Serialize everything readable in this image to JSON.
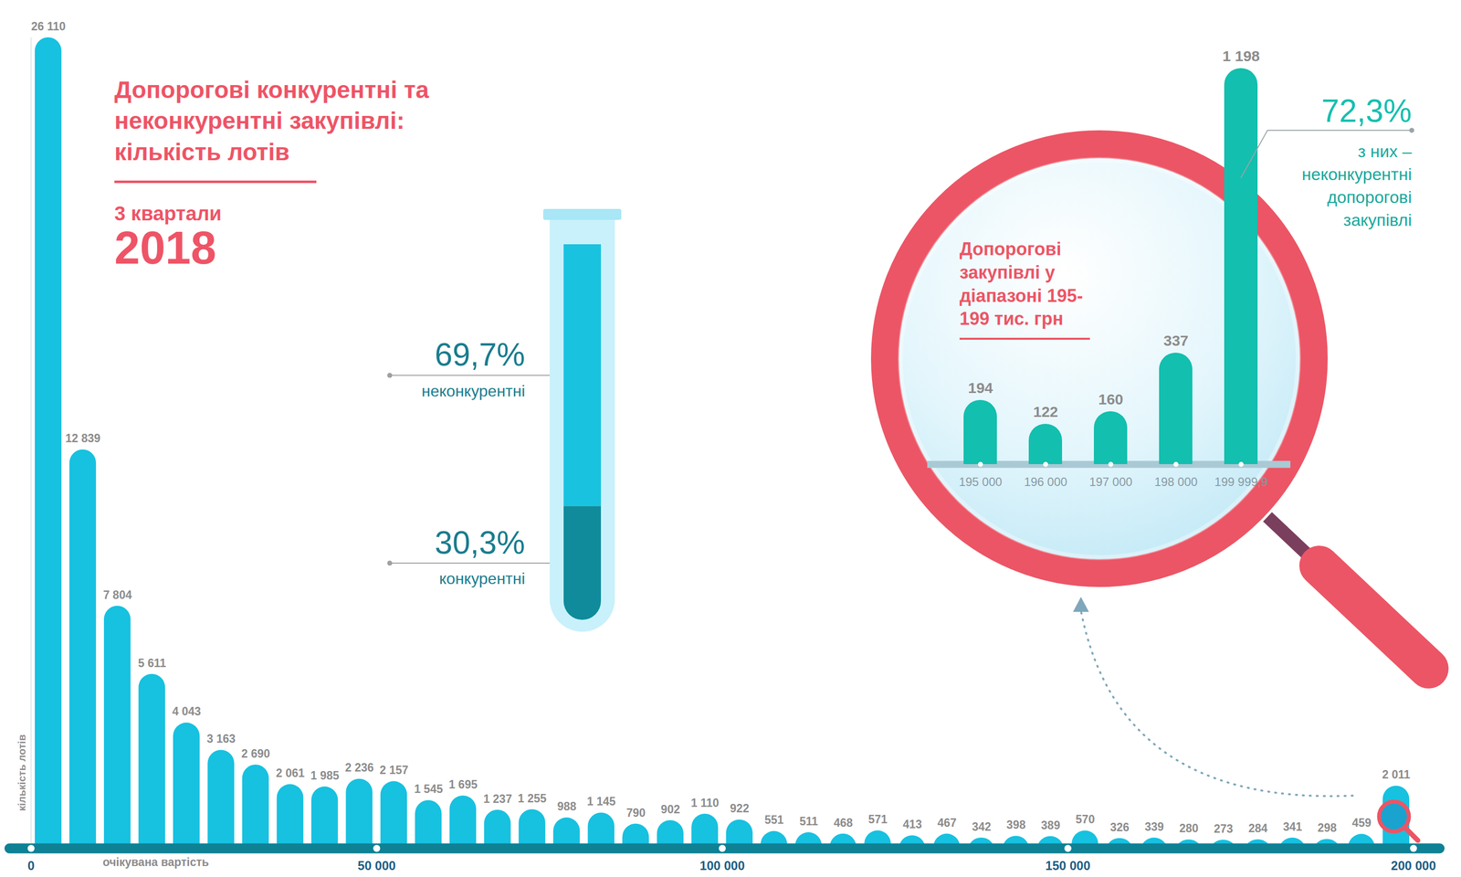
{
  "chart_data": [
    {
      "type": "bar",
      "title": "Допорогові конкурентні та неконкурентні закупівлі: кількість лотів",
      "subtitle": [
        "3 квартали",
        "2018"
      ],
      "xlabel": "очікувана вартість",
      "ylabel": "кількість лотів",
      "bins": [
        0,
        5000,
        10000,
        15000,
        20000,
        25000,
        30000,
        35000,
        40000,
        45000,
        50000,
        55000,
        60000,
        65000,
        70000,
        75000,
        80000,
        85000,
        90000,
        95000,
        100000,
        105000,
        110000,
        115000,
        120000,
        125000,
        130000,
        135000,
        140000,
        145000,
        150000,
        155000,
        160000,
        165000,
        170000,
        175000,
        180000,
        185000,
        190000,
        195000,
        200000
      ],
      "values": [
        26110,
        12839,
        7804,
        5611,
        4043,
        3163,
        2690,
        2061,
        1985,
        2236,
        2157,
        1545,
        1695,
        1237,
        1255,
        988,
        1145,
        790,
        902,
        1110,
        922,
        551,
        511,
        468,
        571,
        413,
        467,
        342,
        398,
        389,
        570,
        326,
        339,
        280,
        273,
        284,
        341,
        298,
        459,
        2011
      ],
      "value_labels": [
        "26 110",
        "12 839",
        "7 804",
        "5 611",
        "4 043",
        "3 163",
        "2 690",
        "2 061",
        "1 985",
        "2 236",
        "2 157",
        "1 545",
        "1 695",
        "1 237",
        "1 255",
        "988",
        "1 145",
        "790",
        "902",
        "1 110",
        "922",
        "551",
        "511",
        "468",
        "571",
        "413",
        "467",
        "342",
        "398",
        "389",
        "570",
        "326",
        "339",
        "280",
        "273",
        "284",
        "341",
        "298",
        "459",
        "2 011"
      ],
      "color": "#17c1e0",
      "xlim": [
        0,
        200000
      ],
      "xticks": [
        0,
        {
          "value": 50000,
          "label": "50 000"
        },
        {
          "value": 100000,
          "label": "100 000"
        },
        {
          "value": 150000,
          "label": "150 000"
        },
        {
          "value": 200000,
          "label": "200 000"
        }
      ],
      "ylim": [
        0,
        26110
      ],
      "data_labels": true,
      "tick_labels": "x"
    },
    {
      "type": "bar",
      "stacked": true,
      "series": [
        {
          "name": "неконкурентні",
          "color": "#19c3df",
          "values": [
            69.7
          ],
          "value_labels": [
            "69,7%"
          ]
        },
        {
          "name": "конкурентні",
          "color": "#0f8b9b",
          "values": [
            30.3
          ],
          "value_labels": [
            "30,3%"
          ]
        }
      ],
      "ylim": [
        0,
        100
      ],
      "data_labels": true,
      "tick_labels": false
    },
    {
      "type": "bar",
      "title": "Допорогові закупівлі у діапазоні 195-199 тис. грн",
      "categories": [
        "195 000",
        "196 000",
        "197 000",
        "198 000",
        "199 999,9"
      ],
      "values": [
        194,
        122,
        160,
        337,
        1198
      ],
      "value_labels": [
        "194",
        "122",
        "160",
        "337",
        "1 198"
      ],
      "color": "#13bfae",
      "ylim": [
        0,
        1198
      ],
      "data_labels": true,
      "tick_labels": "x",
      "annotations": [
        {
          "category": "199 999,9",
          "value": 72.3,
          "label": "72,3%",
          "text": "з них – неконкурентні допорогові закупівлі"
        }
      ]
    }
  ]
}
